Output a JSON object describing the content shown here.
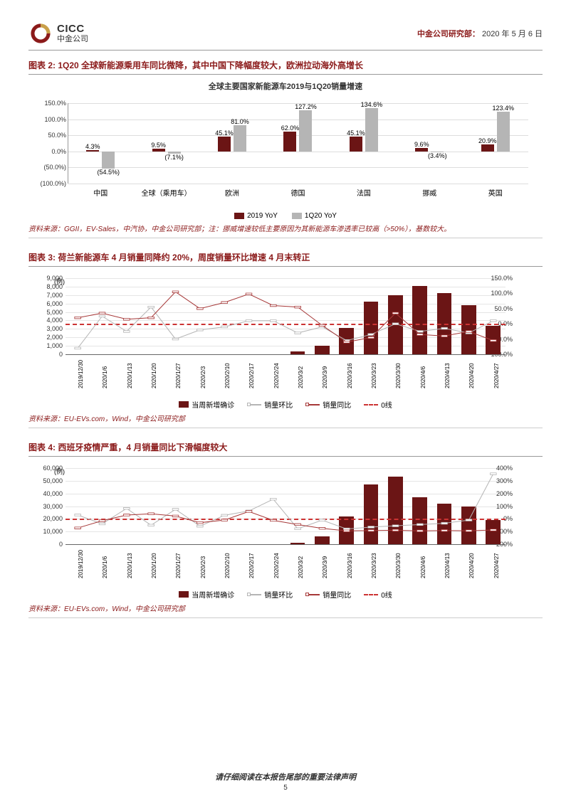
{
  "header": {
    "company_en": "CICC",
    "company_cn": "中金公司",
    "dept": "中金公司研究部：",
    "date": "2020 年 5 月 6 日"
  },
  "colors": {
    "brand_red": "#8b1a1a",
    "bar_dark": "#6b1515",
    "bar_light": "#b5b5b5",
    "line_yoy": "#a63838",
    "line_mom": "#b5b5b5",
    "zero_line": "#cc3333",
    "grid": "#dddddd",
    "text": "#333333"
  },
  "chart2": {
    "title": "图表 2: 1Q20 全球新能源乘用车同比微降，其中中国下降幅度较大，欧洲拉动海外高增长",
    "subtitle": "全球主要国家新能源车2019与1Q20销量增速",
    "ylabels": [
      "150.0%",
      "100.0%",
      "50.0%",
      "0.0%",
      "(50.0%)",
      "(100.0%)"
    ],
    "ymin": -100,
    "ymax": 150,
    "ystep": 50,
    "categories": [
      "中国",
      "全球（乘用车）",
      "欧洲",
      "德国",
      "法国",
      "挪威",
      "英国"
    ],
    "series": [
      {
        "name": "2019 YoY",
        "color": "#6b1515",
        "values": [
          4.3,
          9.5,
          45.1,
          62.0,
          45.1,
          9.6,
          20.9
        ],
        "labels": [
          "4.3%",
          "9.5%",
          "45.1%",
          "62.0%",
          "45.1%",
          "9.6%",
          "20.9%"
        ]
      },
      {
        "name": "1Q20 YoY",
        "color": "#b5b5b5",
        "values": [
          -54.5,
          -7.1,
          81.0,
          127.2,
          134.6,
          -3.4,
          123.4
        ],
        "labels": [
          "(54.5%)",
          "(7.1%)",
          "81.0%",
          "127.2%",
          "134.6%",
          "(3.4%)",
          "123.4%"
        ]
      }
    ],
    "source": "资料来源：GGII，EV-Sales，中汽协，中金公司研究部；注：挪威增速较低主要原因为其新能源车渗透率已较高（>50%），基数较大。"
  },
  "chart3": {
    "title": "图表 3: 荷兰新能源车 4 月销量同降约 20%，周度销量环比增速 4 月末转正",
    "left_unit": "(例)",
    "left_labels": [
      "9,000",
      "8,000",
      "7,000",
      "6,000",
      "5,000",
      "4,000",
      "3,000",
      "2,000",
      "1,000",
      "0"
    ],
    "left_max": 9000,
    "right_labels": [
      "150.0%",
      "100.0%",
      "50.0%",
      "0.0%",
      "-50.0%",
      "-100.0%"
    ],
    "right_min": -100,
    "right_max": 150,
    "zero_right_pct": 40,
    "dates": [
      "2019/12/30",
      "2020/1/6",
      "2020/1/13",
      "2020/1/20",
      "2020/1/27",
      "2020/2/3",
      "2020/2/10",
      "2020/2/17",
      "2020/2/24",
      "2020/3/2",
      "2020/3/9",
      "2020/3/16",
      "2020/3/23",
      "2020/3/30",
      "2020/4/6",
      "2020/4/13",
      "2020/4/20",
      "2020/4/27"
    ],
    "bars": [
      0,
      0,
      0,
      0,
      0,
      0,
      0,
      0,
      0,
      350,
      1000,
      3100,
      6200,
      7000,
      8100,
      7200,
      5800,
      3400
    ],
    "mom": [
      -80,
      25,
      -25,
      55,
      -50,
      -20,
      -10,
      10,
      10,
      -30,
      -10,
      -55,
      -35,
      0,
      -25,
      -15,
      -30,
      10
    ],
    "yoy": [
      20,
      35,
      15,
      20,
      105,
      50,
      70,
      98,
      60,
      55,
      -5,
      -60,
      -45,
      35,
      -35,
      -40,
      -25,
      -55
    ],
    "legend": {
      "bar": "当周新增确诊",
      "mom": "销量环比",
      "yoy": "销量同比",
      "zero": "0线"
    },
    "source": "资料来源：EU-EVs.com，Wind，中金公司研究部"
  },
  "chart4": {
    "title": "图表 4: 西班牙疫情严重，4 月销量同比下滑幅度较大",
    "left_unit": "(例)",
    "left_labels": [
      "60,000",
      "50,000",
      "40,000",
      "30,000",
      "20,000",
      "10,000",
      "0"
    ],
    "left_max": 60000,
    "right_labels": [
      "400%",
      "300%",
      "200%",
      "100%",
      "0%",
      "-100%",
      "-200%"
    ],
    "right_min": -200,
    "right_max": 400,
    "zero_right_pct": 33.33,
    "dates": [
      "2019/12/30",
      "2020/1/6",
      "2020/1/13",
      "2020/1/20",
      "2020/1/27",
      "2020/2/3",
      "2020/2/10",
      "2020/2/17",
      "2020/2/24",
      "2020/3/2",
      "2020/3/9",
      "2020/3/16",
      "2020/3/23",
      "2020/3/30",
      "2020/4/6",
      "2020/4/13",
      "2020/4/20",
      "2020/4/27"
    ],
    "bars": [
      0,
      0,
      0,
      0,
      0,
      0,
      0,
      0,
      0,
      1000,
      6000,
      22000,
      47000,
      53000,
      37000,
      32000,
      30000,
      19000
    ],
    "mom": [
      30,
      -40,
      82,
      -50,
      75,
      -58,
      28,
      62,
      155,
      -78,
      -10,
      -80,
      -65,
      -55,
      -45,
      -35,
      -10,
      355
    ],
    "yoy": [
      -72,
      -15,
      30,
      40,
      22,
      -30,
      -10,
      58,
      -12,
      -45,
      -75,
      -95,
      -92,
      -90,
      -95,
      -92,
      -94,
      -88
    ],
    "legend": {
      "bar": "当周新增确诊",
      "mom": "销量环比",
      "yoy": "销量同比",
      "zero": "0线"
    },
    "source": "资料来源：EU-EVs.com，Wind，中金公司研究部"
  },
  "footer": {
    "disclaimer": "请仔细阅读在本报告尾部的重要法律声明",
    "page": "5"
  }
}
